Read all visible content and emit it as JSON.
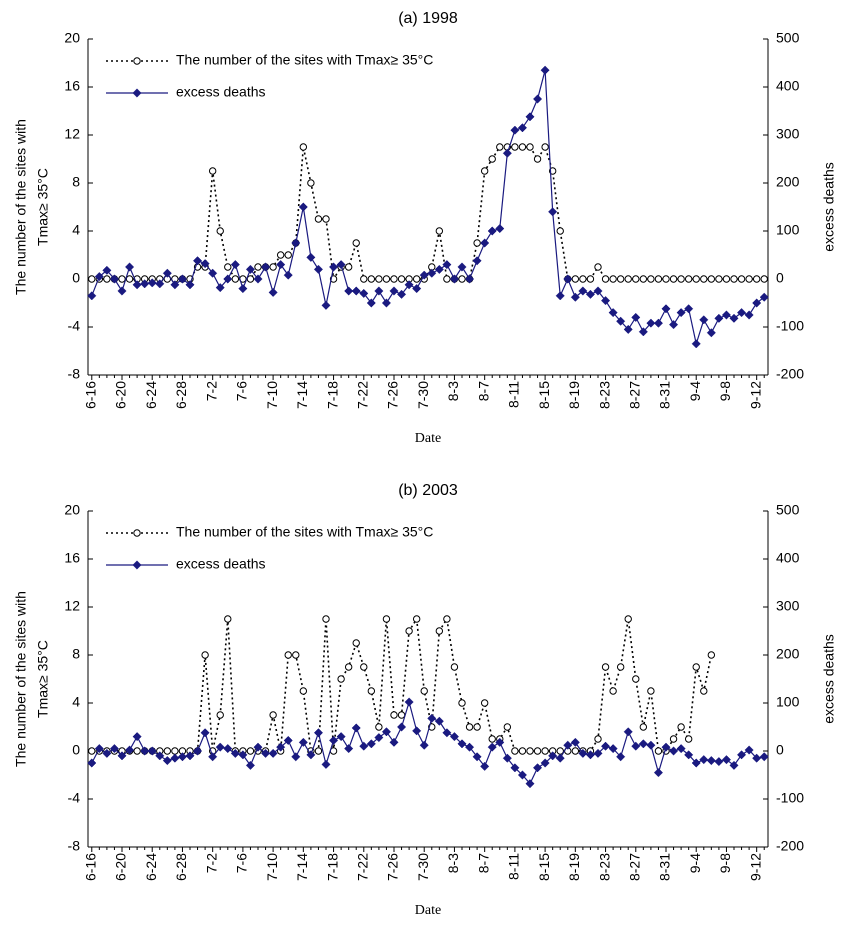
{
  "chart_data": [
    {
      "type": "line",
      "title": "(a) 1998",
      "x_label": "Date",
      "y_label": [
        "The number of the sites with",
        "Tmax≥ 35°C"
      ],
      "y2_label": "excess deaths",
      "categories": [
        "6-16",
        null,
        null,
        null,
        "6-20",
        null,
        null,
        null,
        "6-24",
        null,
        null,
        null,
        "6-28",
        null,
        null,
        null,
        "7-2",
        null,
        null,
        null,
        "7-6",
        null,
        null,
        null,
        "7-10",
        null,
        null,
        null,
        "7-14",
        null,
        null,
        null,
        "7-18",
        null,
        null,
        null,
        "7-22",
        null,
        null,
        null,
        "7-26",
        null,
        null,
        null,
        "7-30",
        null,
        null,
        null,
        "8-3",
        null,
        null,
        null,
        "8-7",
        null,
        null,
        null,
        "8-11",
        null,
        null,
        null,
        "8-15",
        null,
        null,
        null,
        "8-19",
        null,
        null,
        null,
        "8-23",
        null,
        null,
        null,
        "8-27",
        null,
        null,
        null,
        "8-31",
        null,
        null,
        null,
        "9-4",
        null,
        null,
        null,
        "9-8",
        null,
        null,
        null,
        "9-12",
        null
      ],
      "series": [
        {
          "name": "The number of the sites with Tmax≥ 35°C",
          "color": "#000000",
          "dash": "dotted",
          "marker": "circle",
          "values": [
            0,
            0,
            0,
            0,
            0,
            0,
            0,
            0,
            0,
            0,
            0,
            0,
            0,
            0,
            1,
            1,
            9,
            4,
            1,
            0,
            0,
            0,
            1,
            1,
            1,
            2,
            2,
            3,
            11,
            8,
            5,
            5,
            0,
            1,
            1,
            3,
            0,
            0,
            0,
            0,
            0,
            0,
            0,
            0,
            0,
            1,
            4,
            0,
            0,
            0,
            0,
            3,
            9,
            10,
            11,
            11,
            11,
            11,
            11,
            10,
            11,
            9,
            4,
            0,
            0,
            0,
            0,
            1,
            0,
            0,
            0,
            0,
            0,
            0,
            0,
            0,
            0,
            0,
            0,
            0,
            0,
            0,
            0,
            0,
            0,
            0,
            0,
            0,
            0,
            0
          ]
        },
        {
          "name": "excess deaths",
          "color": "#1a1a80",
          "dash": "solid",
          "marker": "diamond",
          "axis": "y2",
          "values": [
            -35,
            5,
            18,
            0,
            -25,
            25,
            -12,
            -10,
            -8,
            -10,
            12,
            -12,
            0,
            -12,
            38,
            32,
            12,
            -18,
            0,
            30,
            -20,
            20,
            0,
            25,
            -28,
            30,
            8,
            75,
            150,
            45,
            20,
            -55,
            25,
            30,
            -25,
            -25,
            -30,
            -50,
            -25,
            -50,
            -25,
            -32,
            -12,
            -20,
            8,
            12,
            20,
            30,
            0,
            25,
            0,
            38,
            75,
            100,
            105,
            262,
            310,
            315,
            338,
            375,
            435,
            140,
            -35,
            0,
            -38,
            -25,
            -32,
            -25,
            -45,
            -70,
            -88,
            -105,
            -80,
            -110,
            -92,
            -92,
            -62,
            -95,
            -70,
            -62,
            -135,
            -85,
            -112,
            -82,
            -75,
            -82,
            -70,
            -75,
            -50,
            -38
          ]
        }
      ],
      "ylim": [
        -8,
        20
      ],
      "yticks": [
        -8,
        -4,
        0,
        4,
        8,
        12,
        16,
        20
      ],
      "y2lim": [
        -200,
        500
      ],
      "y2ticks": [
        -200,
        -100,
        0,
        100,
        200,
        300,
        400,
        500
      ],
      "grid": false,
      "legend": "upper left"
    },
    {
      "type": "line",
      "title": "(b) 2003",
      "x_label": "Date",
      "y_label": [
        "The number of the sites with",
        "Tmax≥ 35°C"
      ],
      "y2_label": "excess deaths",
      "categories": [
        "6-16",
        null,
        null,
        null,
        "6-20",
        null,
        null,
        null,
        "6-24",
        null,
        null,
        null,
        "6-28",
        null,
        null,
        null,
        "7-2",
        null,
        null,
        null,
        "7-6",
        null,
        null,
        null,
        "7-10",
        null,
        null,
        null,
        "7-14",
        null,
        null,
        null,
        "7-18",
        null,
        null,
        null,
        "7-22",
        null,
        null,
        null,
        "7-26",
        null,
        null,
        null,
        "7-30",
        null,
        null,
        null,
        "8-3",
        null,
        null,
        null,
        "8-7",
        null,
        null,
        null,
        "8-11",
        null,
        null,
        null,
        "8-15",
        null,
        null,
        null,
        "8-19",
        null,
        null,
        null,
        "8-23",
        null,
        null,
        null,
        "8-27",
        null,
        null,
        null,
        "8-31",
        null,
        null,
        null,
        "9-4",
        null,
        null,
        null,
        "9-8",
        null,
        null,
        null,
        "9-12",
        null
      ],
      "series": [
        {
          "name": "The number of the sites with Tmax≥ 35°C",
          "color": "#000000",
          "dash": "dotted",
          "marker": "circle",
          "values": [
            0,
            0,
            0,
            0,
            0,
            0,
            0,
            0,
            0,
            0,
            0,
            0,
            0,
            0,
            0,
            8,
            0,
            3,
            11,
            0,
            0,
            0,
            0,
            0,
            3,
            0,
            8,
            8,
            5,
            0,
            0,
            11,
            0,
            6,
            7,
            9,
            7,
            5,
            2,
            11,
            3,
            3,
            10,
            11,
            5,
            2,
            10,
            11,
            7,
            4,
            2,
            2,
            4,
            1,
            1,
            2,
            0,
            0,
            0,
            0,
            0,
            0,
            0,
            0,
            0,
            0,
            0,
            1,
            7,
            5,
            7,
            11,
            6,
            2,
            5,
            0,
            0,
            1,
            2,
            1,
            7,
            5,
            8,
            null,
            null,
            null,
            null,
            null,
            null,
            null
          ]
        },
        {
          "name": "excess deaths",
          "color": "#1a1a80",
          "dash": "solid",
          "marker": "diamond",
          "axis": "y2",
          "values": [
            -25,
            5,
            -5,
            5,
            -10,
            2,
            30,
            0,
            0,
            -10,
            -20,
            -15,
            -12,
            -10,
            0,
            38,
            -12,
            8,
            5,
            -5,
            -8,
            -30,
            8,
            -5,
            -5,
            8,
            22,
            -12,
            18,
            -8,
            38,
            -28,
            22,
            30,
            5,
            48,
            10,
            15,
            28,
            40,
            18,
            50,
            102,
            42,
            12,
            68,
            62,
            38,
            30,
            15,
            8,
            -12,
            -32,
            8,
            18,
            -15,
            -35,
            -50,
            -68,
            -35,
            -25,
            -10,
            -15,
            12,
            18,
            -5,
            -8,
            -5,
            10,
            5,
            -12,
            40,
            10,
            15,
            12,
            -45,
            8,
            0,
            5,
            -8,
            -25,
            -18,
            -20,
            -22,
            -18,
            -30,
            -8,
            2,
            -15,
            -12
          ]
        }
      ],
      "ylim": [
        -8,
        20
      ],
      "yticks": [
        -8,
        -4,
        0,
        4,
        8,
        12,
        16,
        20
      ],
      "y2lim": [
        -200,
        500
      ],
      "y2ticks": [
        -200,
        -100,
        0,
        100,
        200,
        300,
        400,
        500
      ],
      "grid": false,
      "legend": "upper left"
    }
  ]
}
